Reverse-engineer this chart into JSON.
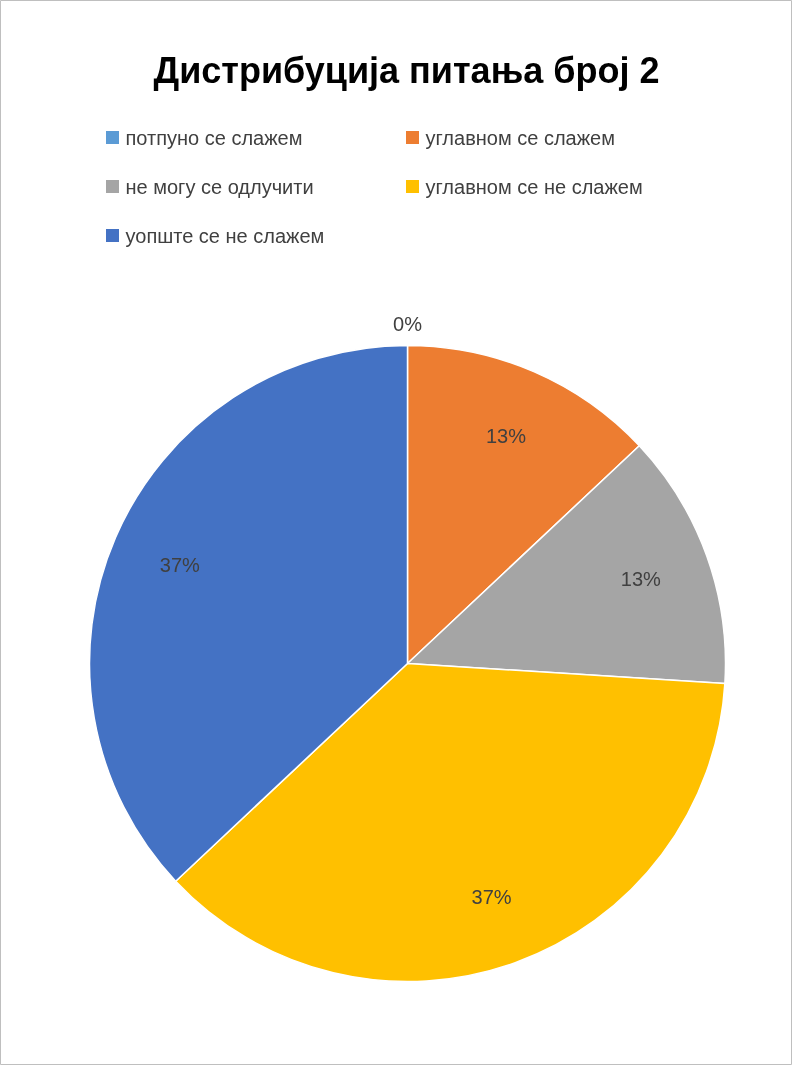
{
  "chart_data": {
    "type": "pie",
    "title": "Дистрибуција питања број 2",
    "categories": [
      "потпуно се слажем",
      "углавном се слажем",
      "не могу се одлучити",
      "углавном се не слажем",
      "уопште се не слажем"
    ],
    "values": [
      0,
      13,
      13,
      37,
      37
    ],
    "colors": [
      "#5b9bd5",
      "#ed7d31",
      "#a5a5a5",
      "#ffc000",
      "#4472c4"
    ],
    "value_labels": [
      "0%",
      "13%",
      "13%",
      "37%",
      "37%"
    ],
    "legend": "top"
  }
}
